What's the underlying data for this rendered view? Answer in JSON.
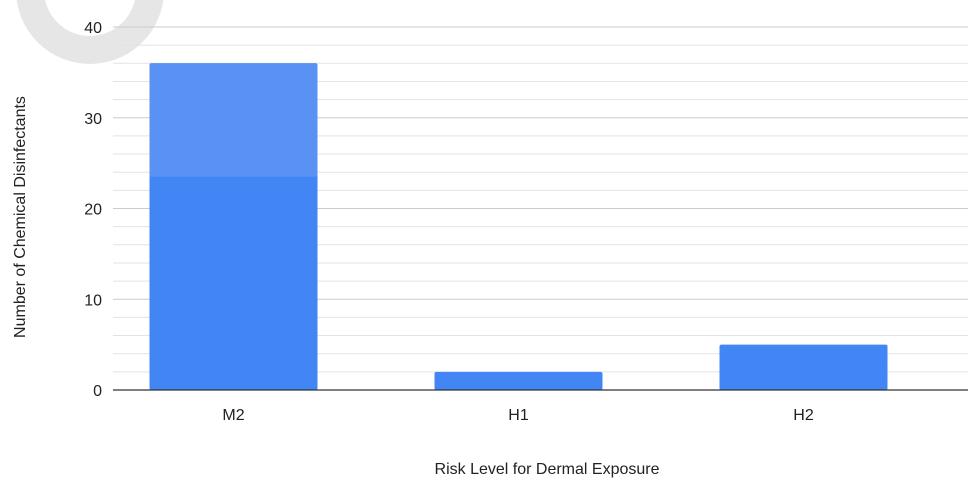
{
  "chart_data": {
    "type": "bar",
    "categories": [
      "M2",
      "H1",
      "H2"
    ],
    "values": [
      36,
      2,
      5
    ],
    "title": "",
    "xlabel": "Risk Level for Dermal Exposure",
    "ylabel": "Number of Chemical Disinfectants",
    "ylim": [
      0,
      40
    ],
    "yticks": [
      "0",
      "10",
      "20",
      "30",
      "40"
    ],
    "grid": true,
    "legend": "none",
    "colors": {
      "bar": "#4285f4",
      "bar_highlight": "#5a91f5",
      "grid": "#d9d9d9",
      "axis": "#333333"
    }
  }
}
